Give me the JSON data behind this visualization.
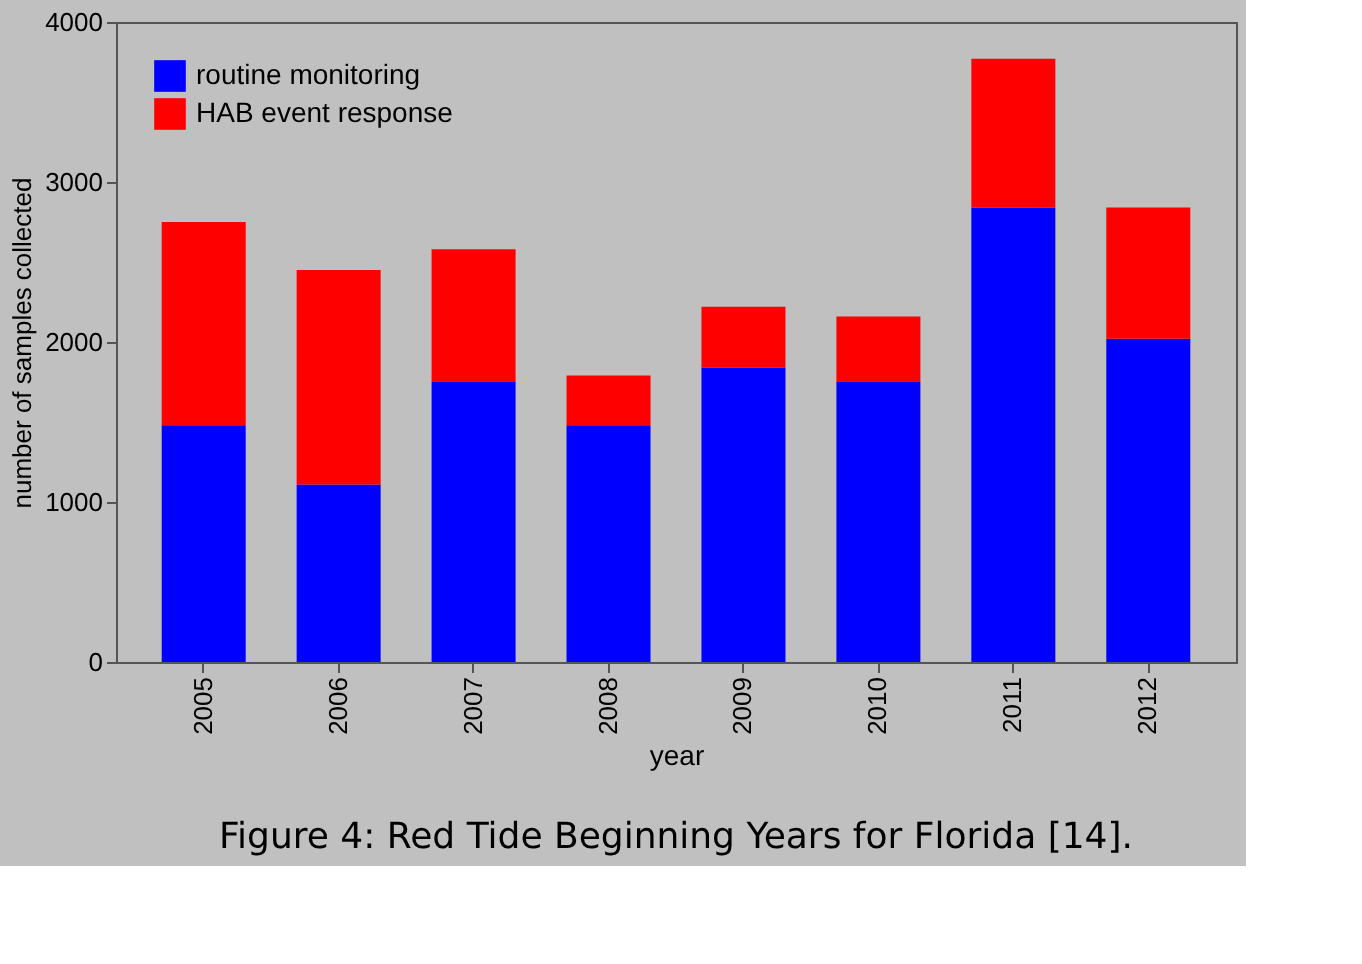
{
  "chart_data": {
    "type": "bar",
    "stacked": true,
    "xlabel": "year",
    "ylabel": "number of samples collected",
    "categories": [
      "2005",
      "2006",
      "2007",
      "2008",
      "2009",
      "2010",
      "2011",
      "2012"
    ],
    "series": [
      {
        "name": "routine monitoring",
        "color": "#0000ff",
        "values": [
          1480,
          1110,
          1750,
          1480,
          1840,
          1750,
          2840,
          2020
        ]
      },
      {
        "name": "HAB event response",
        "color": "#ff0000",
        "values": [
          1270,
          1340,
          830,
          310,
          380,
          410,
          930,
          820
        ]
      }
    ],
    "ylim": [
      0,
      4000
    ],
    "yticks": [
      0,
      1000,
      2000,
      3000,
      4000
    ],
    "grid": false,
    "legend": "top left",
    "annotations": [
      "Figure 4: Red Tide Beginning Years for Florida [14]."
    ]
  }
}
